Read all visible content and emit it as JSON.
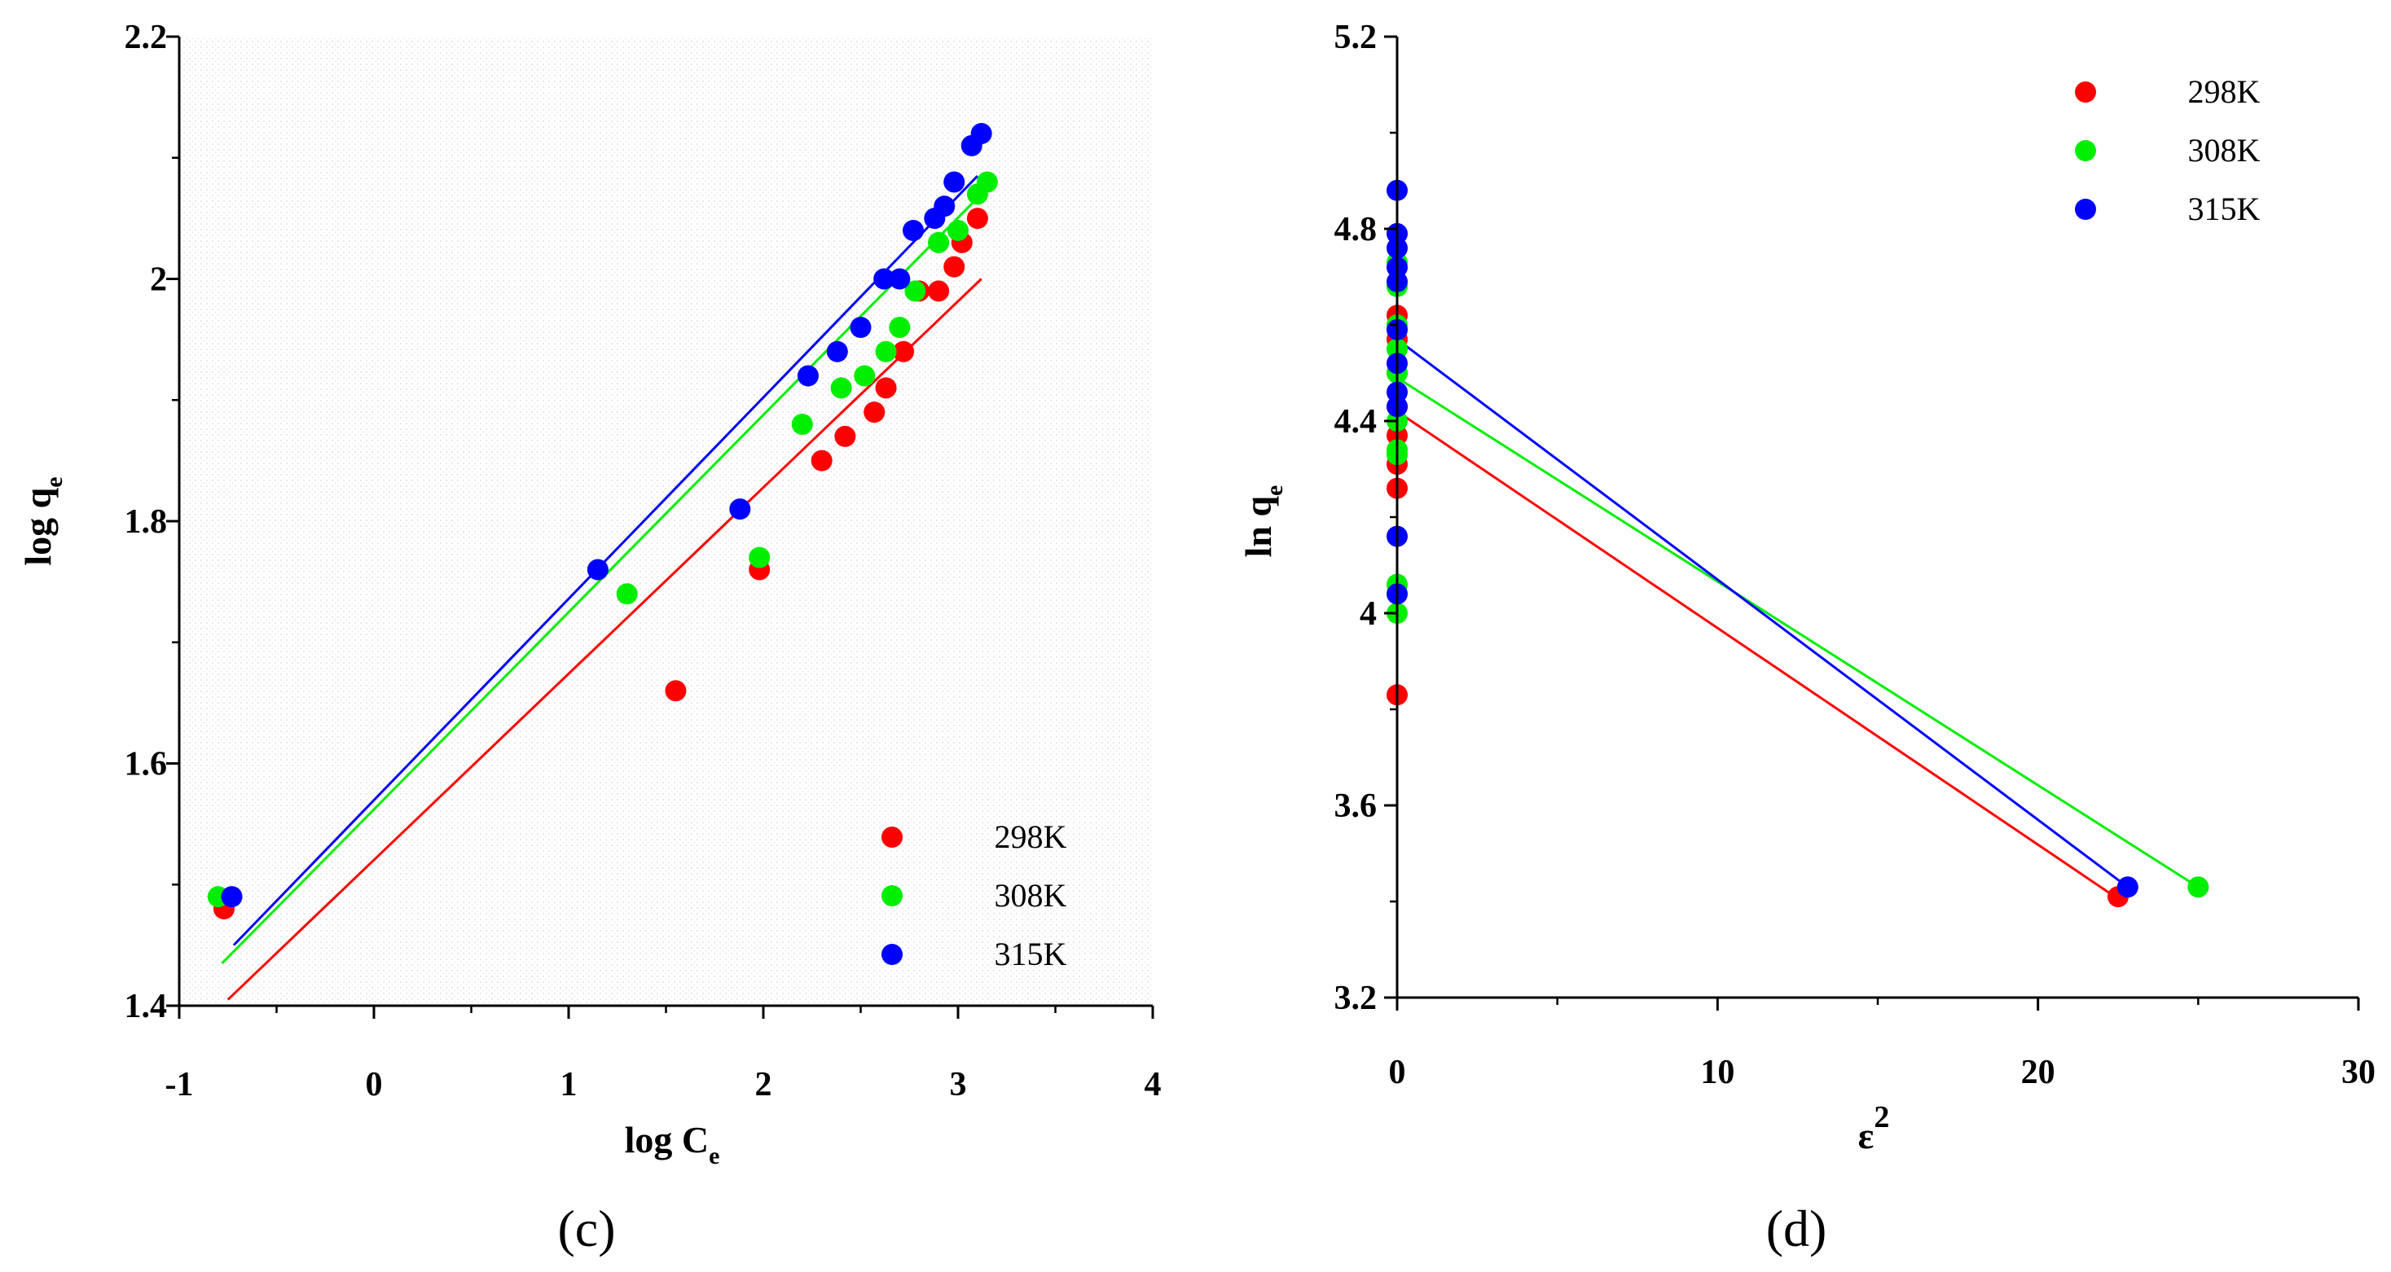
{
  "colors": {
    "298K": "#ff0000",
    "308K": "#00ee00",
    "315K": "#0000ff"
  },
  "chart_data": [
    {
      "type": "scatter",
      "panel_label": "(c)",
      "xlabel": "log C",
      "xlabel_sub": "e",
      "ylabel": "log q",
      "ylabel_sub": "e",
      "xlim": [
        -1,
        4
      ],
      "ylim": [
        1.4,
        2.2
      ],
      "x_ticks": [
        -1,
        0,
        1,
        2,
        3,
        4
      ],
      "y_ticks": [
        1.4,
        1.6,
        1.8,
        2.0,
        2.2
      ],
      "x_tick_labels": [
        "-1",
        "0",
        "1",
        "2",
        "3",
        "4"
      ],
      "y_tick_labels": [
        "1.4",
        "1.6",
        "1.8",
        "2",
        "2.2"
      ],
      "background": "dotted",
      "legend_position": "bottom-right",
      "series": [
        {
          "name": "298K",
          "color": "#ff0000",
          "points": [
            [
              -0.77,
              1.48
            ],
            [
              1.55,
              1.66
            ],
            [
              1.98,
              1.76
            ],
            [
              2.3,
              1.85
            ],
            [
              2.42,
              1.87
            ],
            [
              2.57,
              1.89
            ],
            [
              2.63,
              1.91
            ],
            [
              2.72,
              1.94
            ],
            [
              2.8,
              1.99
            ],
            [
              2.9,
              1.99
            ],
            [
              2.98,
              2.01
            ],
            [
              3.02,
              2.03
            ],
            [
              3.1,
              2.05
            ]
          ],
          "fit_line": [
            [
              -0.75,
              1.405
            ],
            [
              3.12,
              2.0
            ]
          ]
        },
        {
          "name": "308K",
          "color": "#00ee00",
          "points": [
            [
              -0.8,
              1.49
            ],
            [
              1.3,
              1.74
            ],
            [
              1.98,
              1.77
            ],
            [
              2.2,
              1.88
            ],
            [
              2.4,
              1.91
            ],
            [
              2.52,
              1.92
            ],
            [
              2.63,
              1.94
            ],
            [
              2.7,
              1.96
            ],
            [
              2.78,
              1.99
            ],
            [
              2.9,
              2.03
            ],
            [
              3.0,
              2.04
            ],
            [
              3.1,
              2.07
            ],
            [
              3.15,
              2.08
            ]
          ],
          "fit_line": [
            [
              -0.78,
              1.435
            ],
            [
              3.15,
              2.075
            ]
          ]
        },
        {
          "name": "315K",
          "color": "#0000ff",
          "points": [
            [
              -0.73,
              1.49
            ],
            [
              1.15,
              1.76
            ],
            [
              1.88,
              1.81
            ],
            [
              2.23,
              1.92
            ],
            [
              2.38,
              1.94
            ],
            [
              2.5,
              1.96
            ],
            [
              2.62,
              2.0
            ],
            [
              2.7,
              2.0
            ],
            [
              2.77,
              2.04
            ],
            [
              2.88,
              2.05
            ],
            [
              2.93,
              2.06
            ],
            [
              2.98,
              2.08
            ],
            [
              3.07,
              2.11
            ],
            [
              3.12,
              2.12
            ]
          ],
          "fit_line": [
            [
              -0.72,
              1.45
            ],
            [
              3.1,
              2.085
            ]
          ]
        }
      ]
    },
    {
      "type": "scatter",
      "panel_label": "(d)",
      "xlabel": "ε",
      "xlabel_sup": "2",
      "ylabel": "ln q",
      "ylabel_sub": "e",
      "xlim": [
        0,
        30
      ],
      "ylim": [
        3.2,
        5.2
      ],
      "x_ticks": [
        0,
        10,
        20,
        30
      ],
      "y_ticks": [
        3.2,
        3.6,
        4.0,
        4.4,
        4.8,
        5.2
      ],
      "x_tick_labels": [
        "0",
        "10",
        "20",
        "30"
      ],
      "y_tick_labels": [
        "3.2",
        "3.6",
        "4",
        "4.4",
        "4.8",
        "5.2"
      ],
      "background": "plain",
      "legend_position": "top-right",
      "series": [
        {
          "name": "298K",
          "color": "#ff0000",
          "points": [
            [
              0,
              3.83
            ],
            [
              0,
              4.26
            ],
            [
              0,
              4.31
            ],
            [
              0,
              4.37
            ],
            [
              0,
              4.43
            ],
            [
              0,
              4.5
            ],
            [
              0,
              4.57
            ],
            [
              0,
              4.62
            ],
            [
              22.5,
              3.41
            ]
          ],
          "fit_line": [
            [
              0,
              4.42
            ],
            [
              22.4,
              3.41
            ]
          ]
        },
        {
          "name": "308K",
          "color": "#00ee00",
          "points": [
            [
              0,
              4.0
            ],
            [
              0,
              4.06
            ],
            [
              0,
              4.33
            ],
            [
              0,
              4.34
            ],
            [
              0,
              4.4
            ],
            [
              0,
              4.5
            ],
            [
              0,
              4.55
            ],
            [
              0,
              4.6
            ],
            [
              0,
              4.68
            ],
            [
              0,
              4.73
            ],
            [
              25.0,
              3.43
            ]
          ],
          "fit_line": [
            [
              0,
              4.49
            ],
            [
              25.0,
              3.43
            ]
          ]
        },
        {
          "name": "315K",
          "color": "#0000ff",
          "points": [
            [
              0,
              4.04
            ],
            [
              0,
              4.16
            ],
            [
              0,
              4.43
            ],
            [
              0,
              4.46
            ],
            [
              0,
              4.52
            ],
            [
              0,
              4.59
            ],
            [
              0,
              4.69
            ],
            [
              0,
              4.72
            ],
            [
              0,
              4.76
            ],
            [
              0,
              4.79
            ],
            [
              0,
              4.88
            ],
            [
              22.8,
              3.43
            ]
          ],
          "fit_line": [
            [
              0,
              4.57
            ],
            [
              22.8,
              3.43
            ]
          ]
        }
      ]
    }
  ]
}
